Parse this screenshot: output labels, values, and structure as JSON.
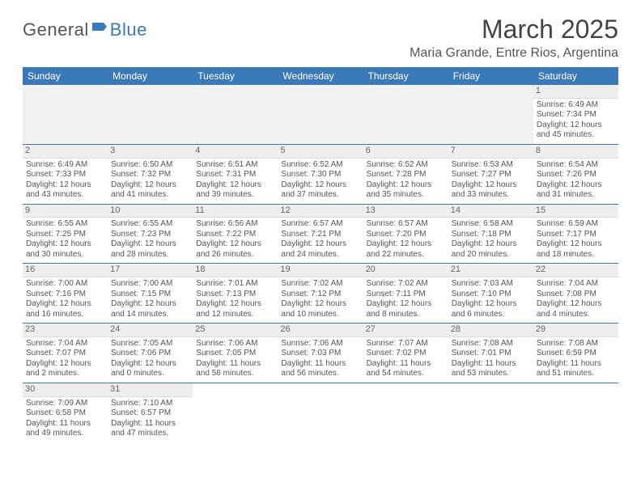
{
  "brand": {
    "part1": "General",
    "part2": "Blue"
  },
  "title": "March 2025",
  "location": "Maria Grande, Entre Rios, Argentina",
  "colors": {
    "header_bg": "#3a7ab8",
    "header_text": "#ffffff",
    "border": "#3a7ab8",
    "daynum_bg": "#eeeeee",
    "empty_bg": "#f1f1f1",
    "text": "#555555"
  },
  "weekdays": [
    "Sunday",
    "Monday",
    "Tuesday",
    "Wednesday",
    "Thursday",
    "Friday",
    "Saturday"
  ],
  "weeks": [
    [
      null,
      null,
      null,
      null,
      null,
      null,
      {
        "n": "1",
        "sr": "Sunrise: 6:49 AM",
        "ss": "Sunset: 7:34 PM",
        "d1": "Daylight: 12 hours",
        "d2": "and 45 minutes."
      }
    ],
    [
      {
        "n": "2",
        "sr": "Sunrise: 6:49 AM",
        "ss": "Sunset: 7:33 PM",
        "d1": "Daylight: 12 hours",
        "d2": "and 43 minutes."
      },
      {
        "n": "3",
        "sr": "Sunrise: 6:50 AM",
        "ss": "Sunset: 7:32 PM",
        "d1": "Daylight: 12 hours",
        "d2": "and 41 minutes."
      },
      {
        "n": "4",
        "sr": "Sunrise: 6:51 AM",
        "ss": "Sunset: 7:31 PM",
        "d1": "Daylight: 12 hours",
        "d2": "and 39 minutes."
      },
      {
        "n": "5",
        "sr": "Sunrise: 6:52 AM",
        "ss": "Sunset: 7:30 PM",
        "d1": "Daylight: 12 hours",
        "d2": "and 37 minutes."
      },
      {
        "n": "6",
        "sr": "Sunrise: 6:52 AM",
        "ss": "Sunset: 7:28 PM",
        "d1": "Daylight: 12 hours",
        "d2": "and 35 minutes."
      },
      {
        "n": "7",
        "sr": "Sunrise: 6:53 AM",
        "ss": "Sunset: 7:27 PM",
        "d1": "Daylight: 12 hours",
        "d2": "and 33 minutes."
      },
      {
        "n": "8",
        "sr": "Sunrise: 6:54 AM",
        "ss": "Sunset: 7:26 PM",
        "d1": "Daylight: 12 hours",
        "d2": "and 31 minutes."
      }
    ],
    [
      {
        "n": "9",
        "sr": "Sunrise: 6:55 AM",
        "ss": "Sunset: 7:25 PM",
        "d1": "Daylight: 12 hours",
        "d2": "and 30 minutes."
      },
      {
        "n": "10",
        "sr": "Sunrise: 6:55 AM",
        "ss": "Sunset: 7:23 PM",
        "d1": "Daylight: 12 hours",
        "d2": "and 28 minutes."
      },
      {
        "n": "11",
        "sr": "Sunrise: 6:56 AM",
        "ss": "Sunset: 7:22 PM",
        "d1": "Daylight: 12 hours",
        "d2": "and 26 minutes."
      },
      {
        "n": "12",
        "sr": "Sunrise: 6:57 AM",
        "ss": "Sunset: 7:21 PM",
        "d1": "Daylight: 12 hours",
        "d2": "and 24 minutes."
      },
      {
        "n": "13",
        "sr": "Sunrise: 6:57 AM",
        "ss": "Sunset: 7:20 PM",
        "d1": "Daylight: 12 hours",
        "d2": "and 22 minutes."
      },
      {
        "n": "14",
        "sr": "Sunrise: 6:58 AM",
        "ss": "Sunset: 7:18 PM",
        "d1": "Daylight: 12 hours",
        "d2": "and 20 minutes."
      },
      {
        "n": "15",
        "sr": "Sunrise: 6:59 AM",
        "ss": "Sunset: 7:17 PM",
        "d1": "Daylight: 12 hours",
        "d2": "and 18 minutes."
      }
    ],
    [
      {
        "n": "16",
        "sr": "Sunrise: 7:00 AM",
        "ss": "Sunset: 7:16 PM",
        "d1": "Daylight: 12 hours",
        "d2": "and 16 minutes."
      },
      {
        "n": "17",
        "sr": "Sunrise: 7:00 AM",
        "ss": "Sunset: 7:15 PM",
        "d1": "Daylight: 12 hours",
        "d2": "and 14 minutes."
      },
      {
        "n": "18",
        "sr": "Sunrise: 7:01 AM",
        "ss": "Sunset: 7:13 PM",
        "d1": "Daylight: 12 hours",
        "d2": "and 12 minutes."
      },
      {
        "n": "19",
        "sr": "Sunrise: 7:02 AM",
        "ss": "Sunset: 7:12 PM",
        "d1": "Daylight: 12 hours",
        "d2": "and 10 minutes."
      },
      {
        "n": "20",
        "sr": "Sunrise: 7:02 AM",
        "ss": "Sunset: 7:11 PM",
        "d1": "Daylight: 12 hours",
        "d2": "and 8 minutes."
      },
      {
        "n": "21",
        "sr": "Sunrise: 7:03 AM",
        "ss": "Sunset: 7:10 PM",
        "d1": "Daylight: 12 hours",
        "d2": "and 6 minutes."
      },
      {
        "n": "22",
        "sr": "Sunrise: 7:04 AM",
        "ss": "Sunset: 7:08 PM",
        "d1": "Daylight: 12 hours",
        "d2": "and 4 minutes."
      }
    ],
    [
      {
        "n": "23",
        "sr": "Sunrise: 7:04 AM",
        "ss": "Sunset: 7:07 PM",
        "d1": "Daylight: 12 hours",
        "d2": "and 2 minutes."
      },
      {
        "n": "24",
        "sr": "Sunrise: 7:05 AM",
        "ss": "Sunset: 7:06 PM",
        "d1": "Daylight: 12 hours",
        "d2": "and 0 minutes."
      },
      {
        "n": "25",
        "sr": "Sunrise: 7:06 AM",
        "ss": "Sunset: 7:05 PM",
        "d1": "Daylight: 11 hours",
        "d2": "and 58 minutes."
      },
      {
        "n": "26",
        "sr": "Sunrise: 7:06 AM",
        "ss": "Sunset: 7:03 PM",
        "d1": "Daylight: 11 hours",
        "d2": "and 56 minutes."
      },
      {
        "n": "27",
        "sr": "Sunrise: 7:07 AM",
        "ss": "Sunset: 7:02 PM",
        "d1": "Daylight: 11 hours",
        "d2": "and 54 minutes."
      },
      {
        "n": "28",
        "sr": "Sunrise: 7:08 AM",
        "ss": "Sunset: 7:01 PM",
        "d1": "Daylight: 11 hours",
        "d2": "and 53 minutes."
      },
      {
        "n": "29",
        "sr": "Sunrise: 7:08 AM",
        "ss": "Sunset: 6:59 PM",
        "d1": "Daylight: 11 hours",
        "d2": "and 51 minutes."
      }
    ],
    [
      {
        "n": "30",
        "sr": "Sunrise: 7:09 AM",
        "ss": "Sunset: 6:58 PM",
        "d1": "Daylight: 11 hours",
        "d2": "and 49 minutes."
      },
      {
        "n": "31",
        "sr": "Sunrise: 7:10 AM",
        "ss": "Sunset: 6:57 PM",
        "d1": "Daylight: 11 hours",
        "d2": "and 47 minutes."
      },
      null,
      null,
      null,
      null,
      null
    ]
  ]
}
